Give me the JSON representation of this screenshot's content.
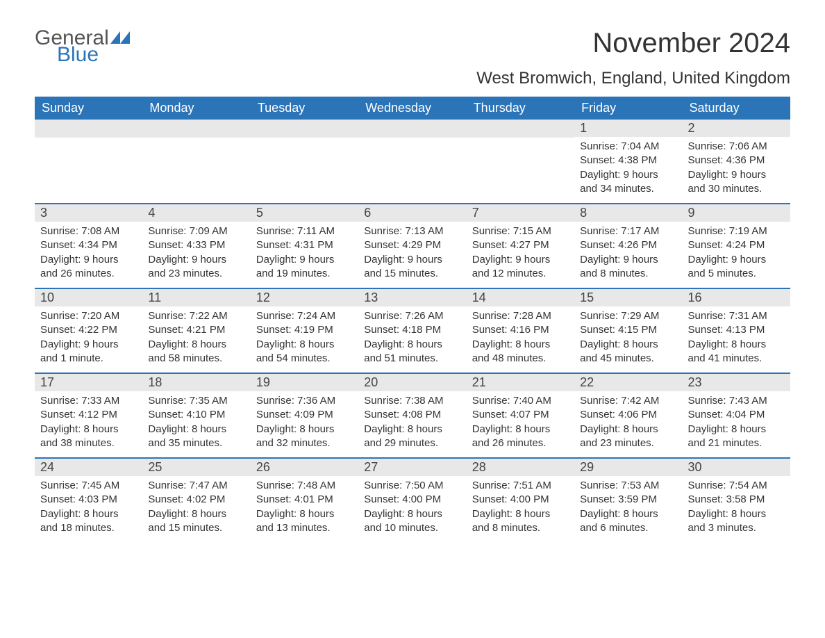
{
  "logo": {
    "text_general": "General",
    "text_blue": "Blue",
    "icon_color": "#2b74b8"
  },
  "title": "November 2024",
  "location": "West Bromwich, England, United Kingdom",
  "colors": {
    "header_bg": "#2b74b8",
    "header_text": "#ffffff",
    "day_bar_bg": "#e8e8e8",
    "border": "#2b74b8",
    "body_text": "#333333",
    "background": "#ffffff"
  },
  "typography": {
    "title_fontsize": 40,
    "location_fontsize": 24,
    "weekday_fontsize": 18,
    "daynum_fontsize": 18,
    "body_fontsize": 15
  },
  "weekdays": [
    "Sunday",
    "Monday",
    "Tuesday",
    "Wednesday",
    "Thursday",
    "Friday",
    "Saturday"
  ],
  "weeks": [
    [
      null,
      null,
      null,
      null,
      null,
      {
        "num": "1",
        "sunrise": "Sunrise: 7:04 AM",
        "sunset": "Sunset: 4:38 PM",
        "daylight": "Daylight: 9 hours and 34 minutes."
      },
      {
        "num": "2",
        "sunrise": "Sunrise: 7:06 AM",
        "sunset": "Sunset: 4:36 PM",
        "daylight": "Daylight: 9 hours and 30 minutes."
      }
    ],
    [
      {
        "num": "3",
        "sunrise": "Sunrise: 7:08 AM",
        "sunset": "Sunset: 4:34 PM",
        "daylight": "Daylight: 9 hours and 26 minutes."
      },
      {
        "num": "4",
        "sunrise": "Sunrise: 7:09 AM",
        "sunset": "Sunset: 4:33 PM",
        "daylight": "Daylight: 9 hours and 23 minutes."
      },
      {
        "num": "5",
        "sunrise": "Sunrise: 7:11 AM",
        "sunset": "Sunset: 4:31 PM",
        "daylight": "Daylight: 9 hours and 19 minutes."
      },
      {
        "num": "6",
        "sunrise": "Sunrise: 7:13 AM",
        "sunset": "Sunset: 4:29 PM",
        "daylight": "Daylight: 9 hours and 15 minutes."
      },
      {
        "num": "7",
        "sunrise": "Sunrise: 7:15 AM",
        "sunset": "Sunset: 4:27 PM",
        "daylight": "Daylight: 9 hours and 12 minutes."
      },
      {
        "num": "8",
        "sunrise": "Sunrise: 7:17 AM",
        "sunset": "Sunset: 4:26 PM",
        "daylight": "Daylight: 9 hours and 8 minutes."
      },
      {
        "num": "9",
        "sunrise": "Sunrise: 7:19 AM",
        "sunset": "Sunset: 4:24 PM",
        "daylight": "Daylight: 9 hours and 5 minutes."
      }
    ],
    [
      {
        "num": "10",
        "sunrise": "Sunrise: 7:20 AM",
        "sunset": "Sunset: 4:22 PM",
        "daylight": "Daylight: 9 hours and 1 minute."
      },
      {
        "num": "11",
        "sunrise": "Sunrise: 7:22 AM",
        "sunset": "Sunset: 4:21 PM",
        "daylight": "Daylight: 8 hours and 58 minutes."
      },
      {
        "num": "12",
        "sunrise": "Sunrise: 7:24 AM",
        "sunset": "Sunset: 4:19 PM",
        "daylight": "Daylight: 8 hours and 54 minutes."
      },
      {
        "num": "13",
        "sunrise": "Sunrise: 7:26 AM",
        "sunset": "Sunset: 4:18 PM",
        "daylight": "Daylight: 8 hours and 51 minutes."
      },
      {
        "num": "14",
        "sunrise": "Sunrise: 7:28 AM",
        "sunset": "Sunset: 4:16 PM",
        "daylight": "Daylight: 8 hours and 48 minutes."
      },
      {
        "num": "15",
        "sunrise": "Sunrise: 7:29 AM",
        "sunset": "Sunset: 4:15 PM",
        "daylight": "Daylight: 8 hours and 45 minutes."
      },
      {
        "num": "16",
        "sunrise": "Sunrise: 7:31 AM",
        "sunset": "Sunset: 4:13 PM",
        "daylight": "Daylight: 8 hours and 41 minutes."
      }
    ],
    [
      {
        "num": "17",
        "sunrise": "Sunrise: 7:33 AM",
        "sunset": "Sunset: 4:12 PM",
        "daylight": "Daylight: 8 hours and 38 minutes."
      },
      {
        "num": "18",
        "sunrise": "Sunrise: 7:35 AM",
        "sunset": "Sunset: 4:10 PM",
        "daylight": "Daylight: 8 hours and 35 minutes."
      },
      {
        "num": "19",
        "sunrise": "Sunrise: 7:36 AM",
        "sunset": "Sunset: 4:09 PM",
        "daylight": "Daylight: 8 hours and 32 minutes."
      },
      {
        "num": "20",
        "sunrise": "Sunrise: 7:38 AM",
        "sunset": "Sunset: 4:08 PM",
        "daylight": "Daylight: 8 hours and 29 minutes."
      },
      {
        "num": "21",
        "sunrise": "Sunrise: 7:40 AM",
        "sunset": "Sunset: 4:07 PM",
        "daylight": "Daylight: 8 hours and 26 minutes."
      },
      {
        "num": "22",
        "sunrise": "Sunrise: 7:42 AM",
        "sunset": "Sunset: 4:06 PM",
        "daylight": "Daylight: 8 hours and 23 minutes."
      },
      {
        "num": "23",
        "sunrise": "Sunrise: 7:43 AM",
        "sunset": "Sunset: 4:04 PM",
        "daylight": "Daylight: 8 hours and 21 minutes."
      }
    ],
    [
      {
        "num": "24",
        "sunrise": "Sunrise: 7:45 AM",
        "sunset": "Sunset: 4:03 PM",
        "daylight": "Daylight: 8 hours and 18 minutes."
      },
      {
        "num": "25",
        "sunrise": "Sunrise: 7:47 AM",
        "sunset": "Sunset: 4:02 PM",
        "daylight": "Daylight: 8 hours and 15 minutes."
      },
      {
        "num": "26",
        "sunrise": "Sunrise: 7:48 AM",
        "sunset": "Sunset: 4:01 PM",
        "daylight": "Daylight: 8 hours and 13 minutes."
      },
      {
        "num": "27",
        "sunrise": "Sunrise: 7:50 AM",
        "sunset": "Sunset: 4:00 PM",
        "daylight": "Daylight: 8 hours and 10 minutes."
      },
      {
        "num": "28",
        "sunrise": "Sunrise: 7:51 AM",
        "sunset": "Sunset: 4:00 PM",
        "daylight": "Daylight: 8 hours and 8 minutes."
      },
      {
        "num": "29",
        "sunrise": "Sunrise: 7:53 AM",
        "sunset": "Sunset: 3:59 PM",
        "daylight": "Daylight: 8 hours and 6 minutes."
      },
      {
        "num": "30",
        "sunrise": "Sunrise: 7:54 AM",
        "sunset": "Sunset: 3:58 PM",
        "daylight": "Daylight: 8 hours and 3 minutes."
      }
    ]
  ]
}
